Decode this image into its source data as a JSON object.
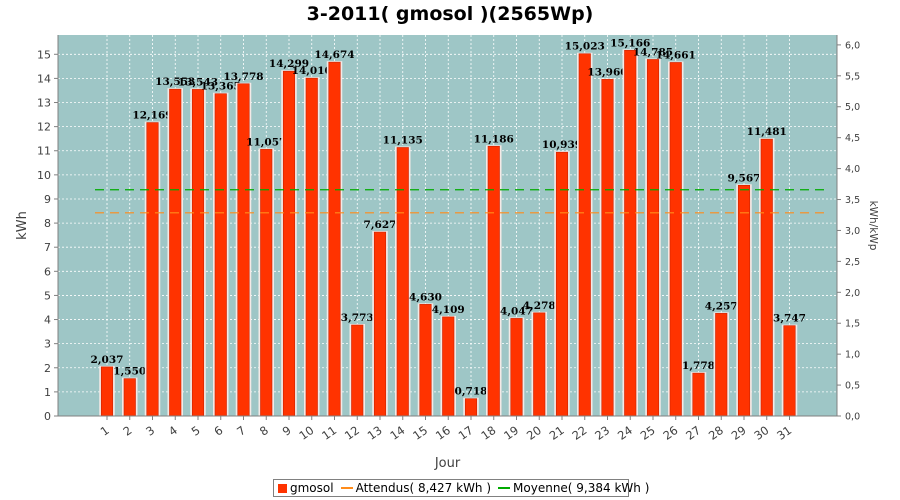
{
  "chart_data": {
    "type": "bar",
    "title": "3-2011( gmosol )(2565Wp)",
    "xlabel": "Jour",
    "ylabel": "kWh",
    "y2label": "kWh/kWp",
    "ylim": [
      0,
      15.8
    ],
    "y2lim": [
      0,
      6.16
    ],
    "yticks": [
      "0",
      "1",
      "2",
      "3",
      "4",
      "5",
      "6",
      "7",
      "8",
      "9",
      "10",
      "11",
      "12",
      "13",
      "14",
      "15"
    ],
    "y2ticks": [
      "0,0",
      "0,5",
      "1,0",
      "1,5",
      "2,0",
      "2,5",
      "3,0",
      "3,5",
      "4,0",
      "4,5",
      "5,0",
      "5,5",
      "6,0"
    ],
    "categories": [
      "1",
      "2",
      "3",
      "4",
      "5",
      "6",
      "7",
      "8",
      "9",
      "10",
      "11",
      "12",
      "13",
      "14",
      "15",
      "16",
      "17",
      "18",
      "19",
      "20",
      "21",
      "22",
      "23",
      "24",
      "25",
      "26",
      "27",
      "28",
      "29",
      "30",
      "31"
    ],
    "series": [
      {
        "name": "gmosol",
        "values": [
          2.037,
          1.55,
          12.169,
          13.553,
          13.543,
          13.365,
          13.778,
          11.057,
          14.299,
          14.01,
          14.674,
          3.773,
          7.627,
          11.135,
          4.63,
          4.109,
          0.718,
          11.186,
          4.047,
          4.278,
          10.939,
          15.023,
          13.96,
          15.166,
          14.785,
          14.661,
          1.778,
          4.257,
          9.567,
          11.481,
          3.747
        ],
        "labels": [
          "2,037",
          "1,550",
          "12,169",
          "13,553",
          "13,543",
          "13,365",
          "13,778",
          "11,057",
          "14,299",
          "14,010",
          "14,674",
          "3,773",
          "7,627",
          "11,135",
          "4,630",
          "4,109",
          "0,718",
          "11,186",
          "4,047",
          "4,278",
          "10,939",
          "15,023",
          "13,960",
          "15,166",
          "14,785",
          "14,661",
          "1,778",
          "4,257",
          "9,567",
          "11,481",
          "3,747"
        ]
      }
    ],
    "reference_lines": [
      {
        "name": "Attendus( 8,427 kWh )",
        "value": 8.427,
        "color": "#ff8c1a"
      },
      {
        "name": "Moyenne( 9,384 kWh )",
        "value": 9.384,
        "color": "#00aa00"
      }
    ],
    "grid": true,
    "legend_position": "bottom",
    "colors": {
      "bar": "#ff3300",
      "bar_edge": "#cc2200",
      "plot_bg": "#9ec6c6",
      "grid": "#ffffff",
      "attendus": "#ff8c1a",
      "moyenne": "#00aa00"
    }
  }
}
